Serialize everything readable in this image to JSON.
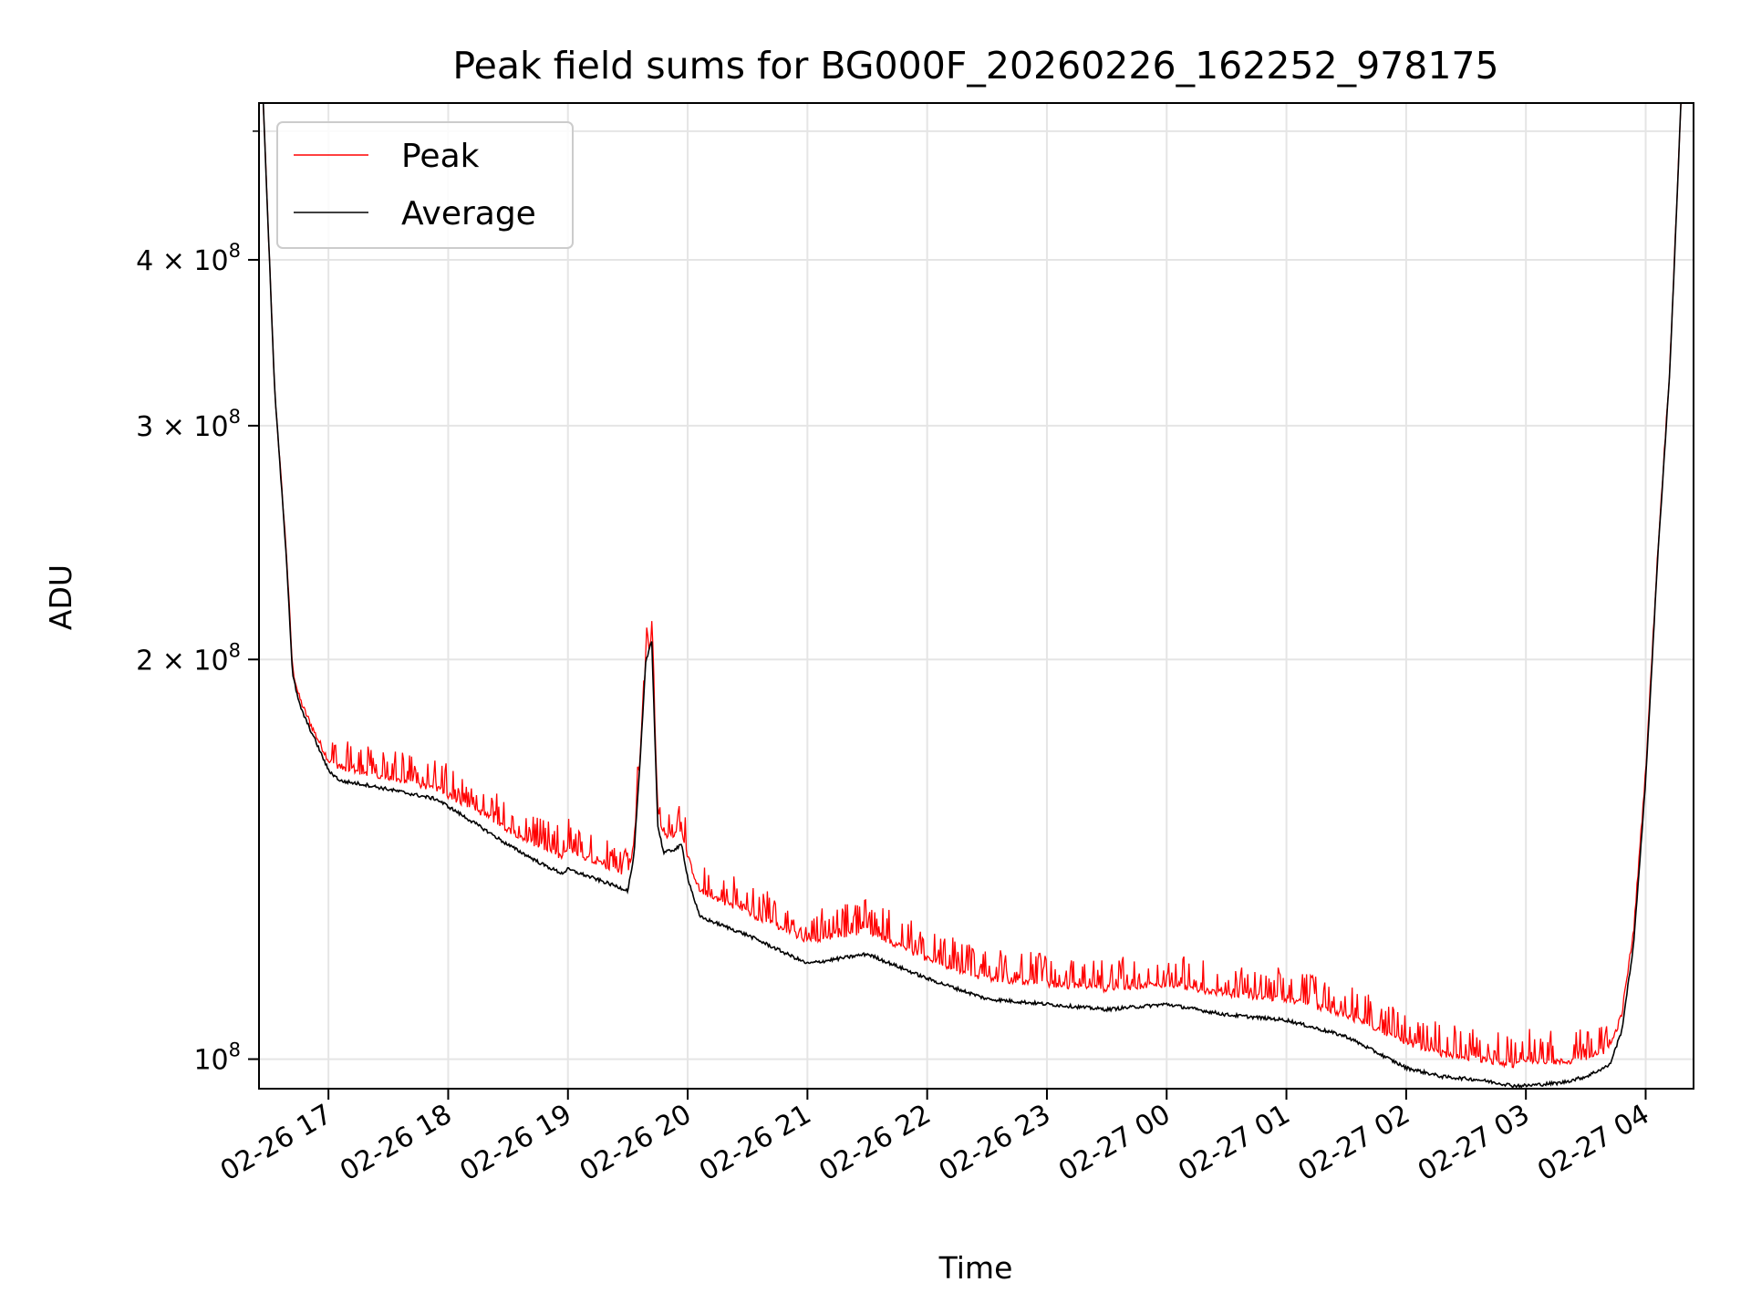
{
  "chart_data": {
    "type": "line",
    "title": "Peak field sums for BG000F_20260226_162252_978175",
    "xlabel": "Time",
    "ylabel": "ADU",
    "yscale": "log",
    "xlim": [
      16.42,
      28.4
    ],
    "ylim": [
      95000000,
      525000000
    ],
    "grid": true,
    "legend_location": "upper-left",
    "x_ticks": [
      {
        "value": 17,
        "label": "02-26 17"
      },
      {
        "value": 18,
        "label": "02-26 18"
      },
      {
        "value": 19,
        "label": "02-26 19"
      },
      {
        "value": 20,
        "label": "02-26 20"
      },
      {
        "value": 21,
        "label": "02-26 21"
      },
      {
        "value": 22,
        "label": "02-26 22"
      },
      {
        "value": 23,
        "label": "02-26 23"
      },
      {
        "value": 24,
        "label": "02-27 00"
      },
      {
        "value": 25,
        "label": "02-27 01"
      },
      {
        "value": 26,
        "label": "02-27 02"
      },
      {
        "value": 27,
        "label": "02-27 03"
      },
      {
        "value": 28,
        "label": "02-27 04"
      }
    ],
    "y_ticks": [
      {
        "value": 100000000,
        "mant": "",
        "exp": "8",
        "base": "10"
      },
      {
        "value": 200000000,
        "mant": "2 × ",
        "exp": "8",
        "base": "10"
      },
      {
        "value": 300000000,
        "mant": "3 × ",
        "exp": "8",
        "base": "10"
      },
      {
        "value": 400000000,
        "mant": "4 × ",
        "exp": "8",
        "base": "10"
      }
    ],
    "y_minor_ticks": [
      500000000
    ],
    "series": [
      {
        "name": "Peak",
        "color": "#ff0000",
        "style": "spiky upper envelope above average",
        "x": [
          16.45,
          16.55,
          16.65,
          16.7,
          16.75,
          16.8,
          16.9,
          17.0,
          17.1,
          17.3,
          17.6,
          17.9,
          18.0,
          18.3,
          18.5,
          18.8,
          18.95,
          19.0,
          19.2,
          19.4,
          19.5,
          19.55,
          19.6,
          19.65,
          19.7,
          19.75,
          19.8,
          19.9,
          19.95,
          20.0,
          20.1,
          20.5,
          21.0,
          21.5,
          22.0,
          22.5,
          23.0,
          23.5,
          24.0,
          24.5,
          25.0,
          25.5,
          26.0,
          26.3,
          26.6,
          26.9,
          27.0,
          27.3,
          27.5,
          27.7,
          27.8,
          27.9,
          28.0,
          28.1,
          28.2,
          28.25,
          28.3
        ],
        "y": [
          540000000,
          320000000,
          240000000,
          197000000,
          188000000,
          183000000,
          175000000,
          168000000,
          166000000,
          164000000,
          162000000,
          160000000,
          158000000,
          153000000,
          149000000,
          144000000,
          142000000,
          144000000,
          141000000,
          139000000,
          138000000,
          145000000,
          168000000,
          200000000,
          208000000,
          155000000,
          147000000,
          148000000,
          149000000,
          142000000,
          134000000,
          129000000,
          123000000,
          125000000,
          119000000,
          115000000,
          114000000,
          113000000,
          114000000,
          112000000,
          111000000,
          108000000,
          103000000,
          101000000,
          100000000,
          99000000,
          100000000,
          99500000,
          100000000,
          102000000,
          108000000,
          125000000,
          165000000,
          240000000,
          330000000,
          420000000,
          540000000
        ]
      },
      {
        "name": "Average",
        "color": "#000000",
        "style": "smooth baseline",
        "x": [
          16.45,
          16.55,
          16.65,
          16.7,
          16.75,
          16.8,
          16.9,
          17.0,
          17.1,
          17.3,
          17.6,
          17.9,
          18.0,
          18.3,
          18.5,
          18.8,
          18.95,
          19.0,
          19.2,
          19.4,
          19.5,
          19.55,
          19.6,
          19.65,
          19.7,
          19.75,
          19.8,
          19.9,
          19.95,
          20.0,
          20.1,
          20.5,
          21.0,
          21.5,
          22.0,
          22.5,
          23.0,
          23.5,
          24.0,
          24.5,
          25.0,
          25.5,
          26.0,
          26.3,
          26.6,
          26.9,
          27.0,
          27.3,
          27.5,
          27.7,
          27.8,
          27.9,
          28.0,
          28.1,
          28.2,
          28.25,
          28.3
        ],
        "y": [
          540000000,
          320000000,
          238000000,
          195000000,
          186000000,
          181000000,
          173000000,
          165000000,
          162000000,
          161000000,
          159000000,
          157000000,
          155000000,
          149000000,
          145000000,
          140000000,
          138000000,
          139000000,
          137000000,
          135000000,
          134000000,
          142000000,
          166000000,
          199000000,
          207000000,
          150000000,
          143000000,
          144000000,
          145000000,
          137000000,
          128000000,
          124000000,
          118000000,
          120000000,
          115000000,
          111000000,
          110000000,
          109000000,
          110000000,
          108000000,
          107000000,
          104000000,
          98500000,
          97000000,
          96500000,
          95500000,
          95500000,
          96000000,
          97000000,
          99000000,
          105000000,
          122000000,
          162000000,
          238000000,
          328000000,
          418000000,
          540000000
        ]
      }
    ]
  }
}
